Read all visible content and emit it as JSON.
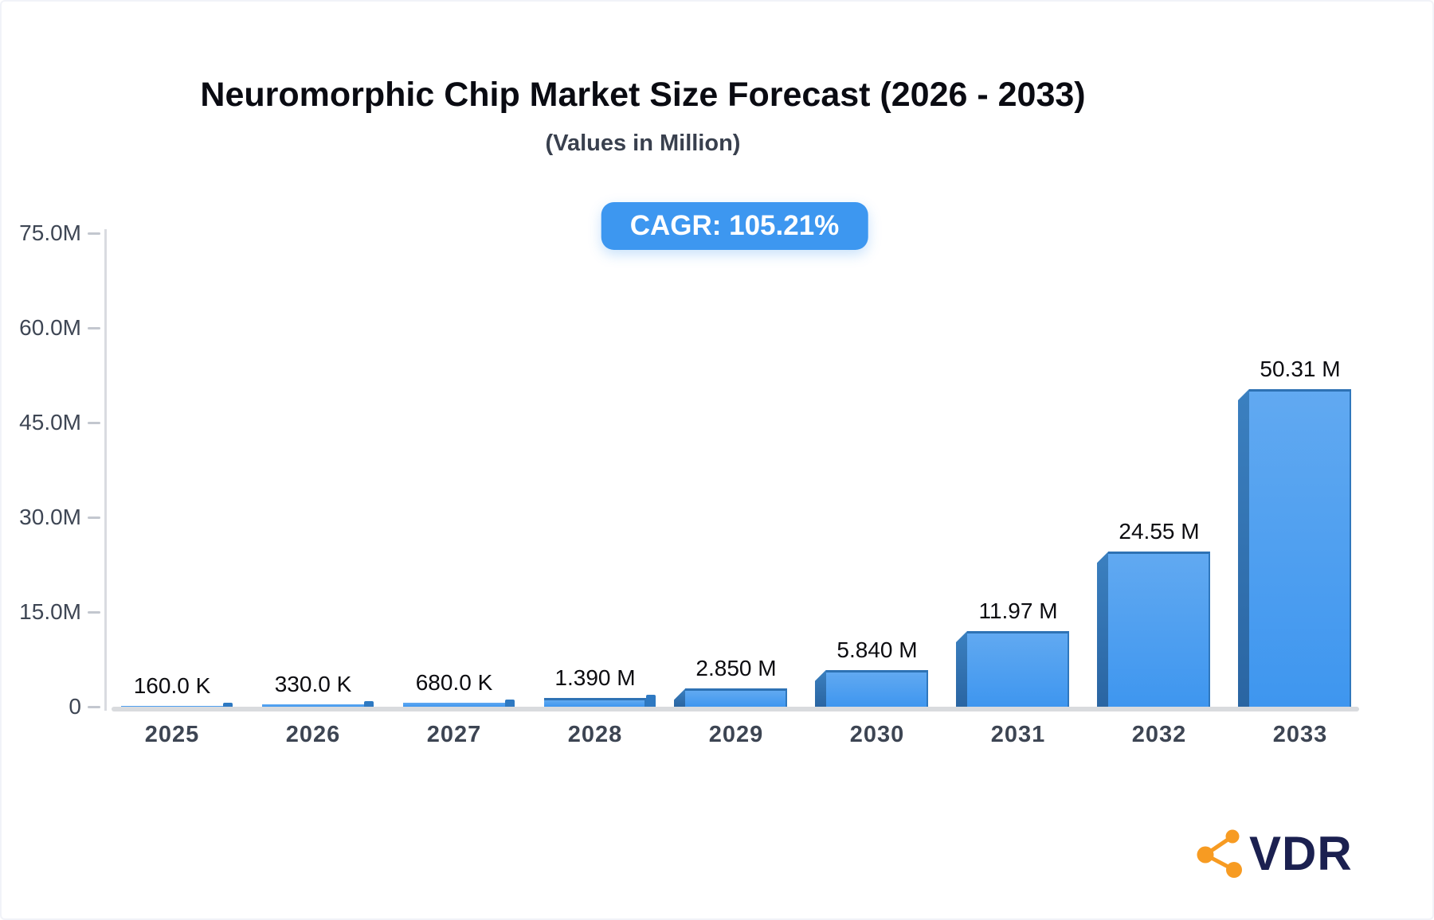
{
  "badge": {
    "text": "CAGR: 105.21%"
  },
  "footer": {
    "logo_text": "VDR",
    "logo_icon": "share-network-icon"
  },
  "colors": {
    "badge_bg": "#3d97f0",
    "bar_face_top": "#61a9f1",
    "bar_face_bottom": "#3e96ef",
    "bar_face_top_border": "#2e72b4",
    "bar_face_right_border": "#2f77bd",
    "bar_side_dark": "#2a65a2",
    "bar_cap": "#2e79c2",
    "axis_gray": "#d9dbe0",
    "tick_label": "#3e4654",
    "value_label": "#0c0c10",
    "logo_orange": "#f79b22",
    "logo_navy": "#1b2050"
  },
  "chart_data": {
    "type": "bar",
    "title": "Neuromorphic Chip Market Size Forecast (2026 - 2033)",
    "subtitle": "(Values in Million)",
    "categories": [
      "2025",
      "2026",
      "2027",
      "2028",
      "2029",
      "2030",
      "2031",
      "2032",
      "2033"
    ],
    "values": [
      0.16,
      0.33,
      0.68,
      1.39,
      2.85,
      5.84,
      11.97,
      24.55,
      50.31
    ],
    "value_labels": [
      "160.0 K",
      "330.0 K",
      "680.0 K",
      "1.390 M",
      "2.850 M",
      "5.840 M",
      "11.97 M",
      "24.55 M",
      "50.31 M"
    ],
    "xlabel": "",
    "ylabel": "",
    "ylim": [
      0,
      75
    ],
    "yticks": [
      {
        "value": 0,
        "label": "0"
      },
      {
        "value": 15,
        "label": "15.0M"
      },
      {
        "value": 30,
        "label": "30.0M"
      },
      {
        "value": 45,
        "label": "45.0M"
      },
      {
        "value": 60,
        "label": "60.0M"
      },
      {
        "value": 75,
        "label": "75.0M"
      }
    ],
    "grid": false,
    "legend": null
  }
}
